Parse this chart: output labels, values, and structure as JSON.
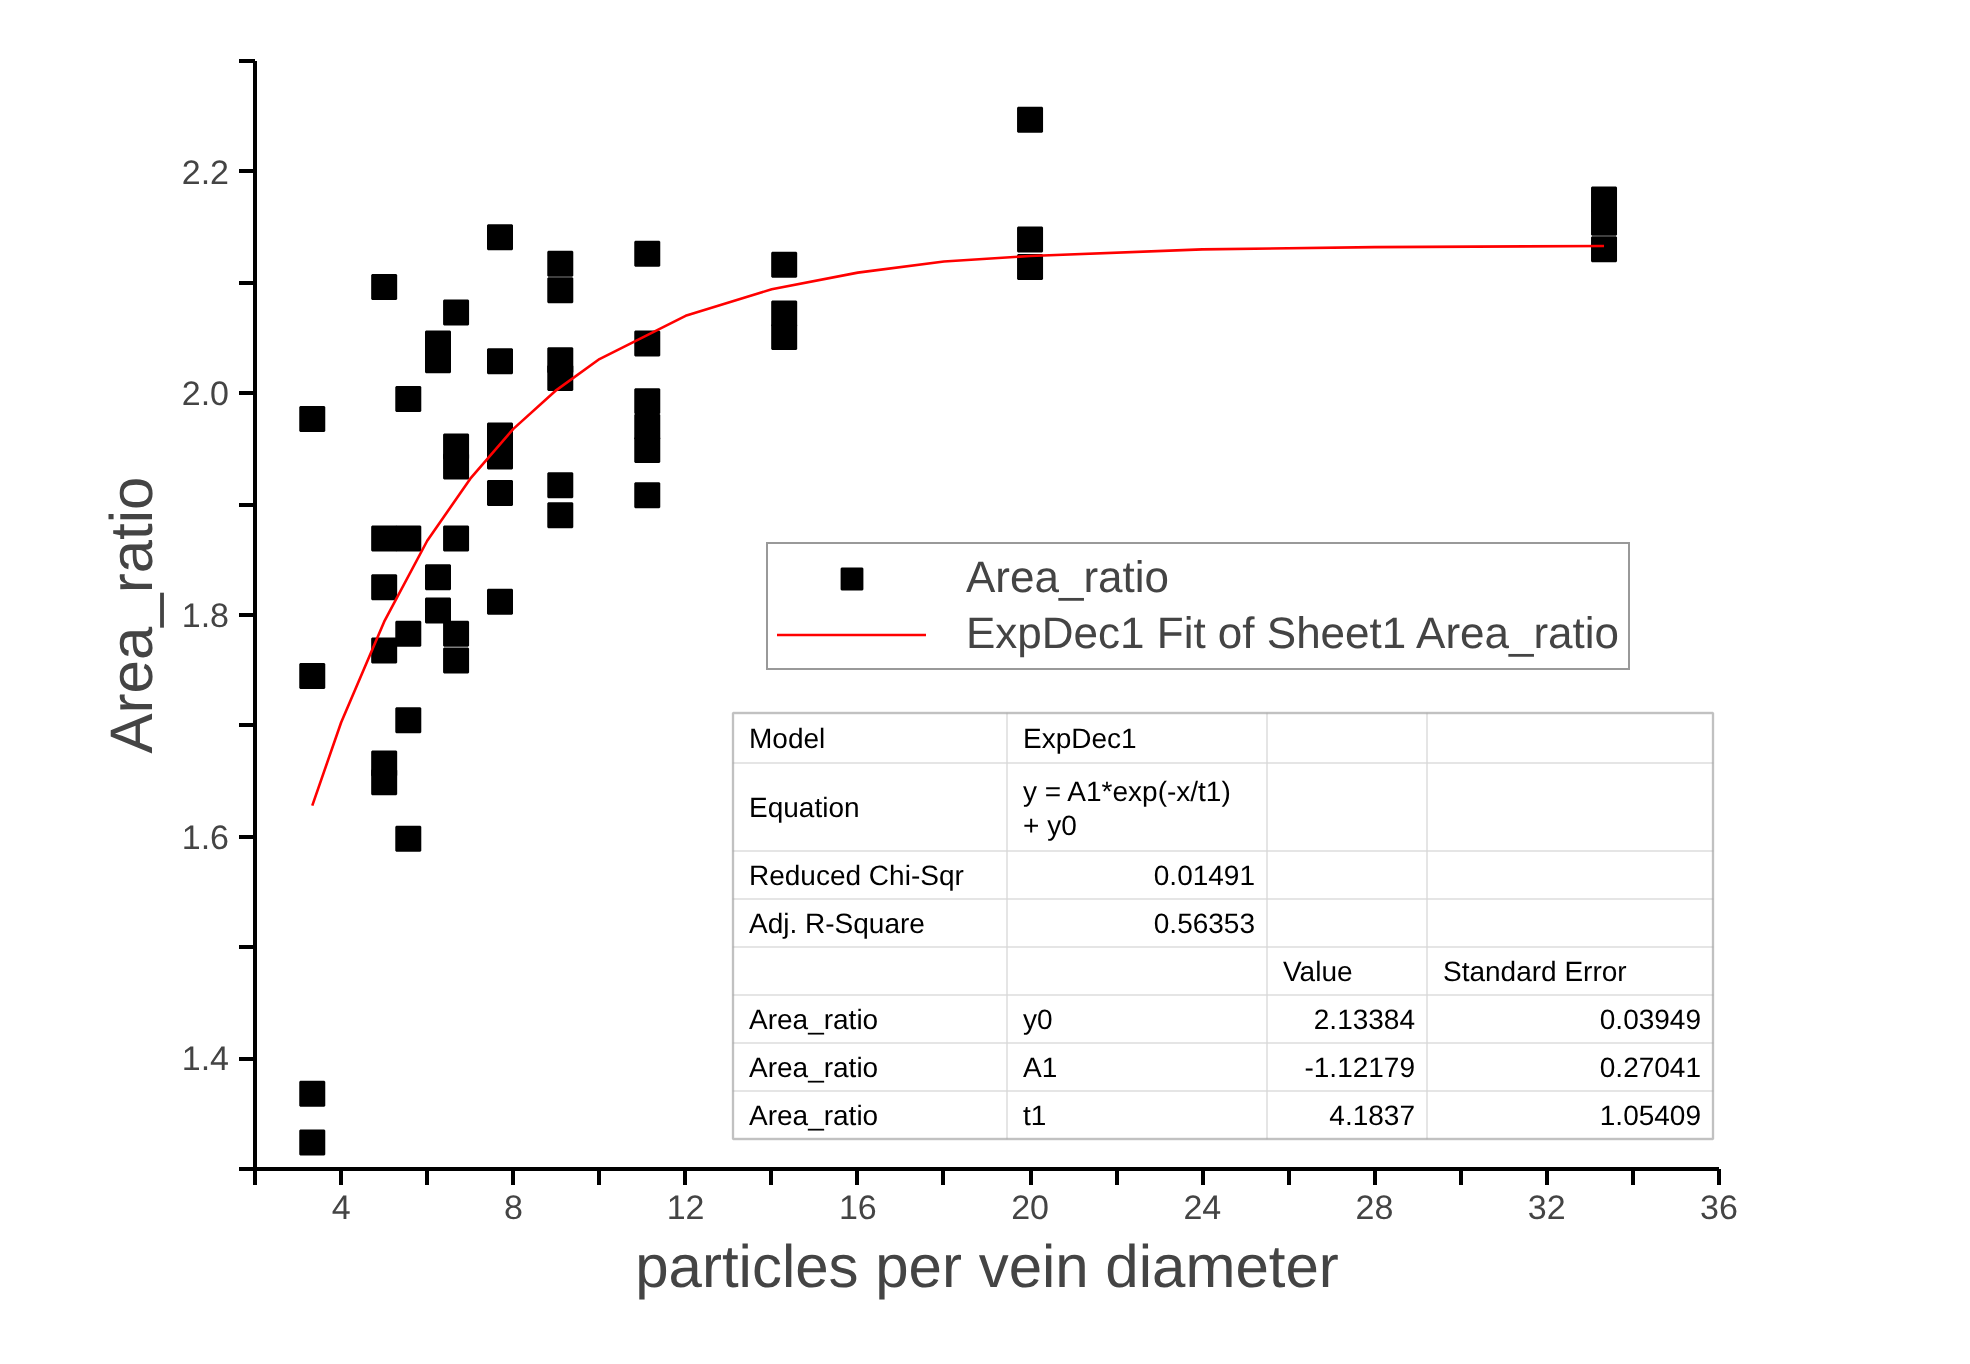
{
  "chart_data": {
    "type": "scatter",
    "xlabel": "particles per vein diameter",
    "ylabel": "Area_ratio",
    "xlim": [
      2,
      36
    ],
    "ylim": [
      1.3,
      2.3
    ],
    "xticks": [
      {
        "value": 2,
        "label": null
      },
      4,
      {
        "value": 6,
        "label": null
      },
      8,
      {
        "value": 10,
        "label": null
      },
      12,
      {
        "value": 14,
        "label": null
      },
      16,
      {
        "value": 18,
        "label": null
      },
      20,
      {
        "value": 22,
        "label": null
      },
      24,
      {
        "value": 26,
        "label": null
      },
      28,
      {
        "value": 30,
        "label": null
      },
      32,
      {
        "value": 34,
        "label": null
      },
      36
    ],
    "yticks": [
      {
        "value": 1.3,
        "label": null
      },
      1.4,
      {
        "value": 1.5,
        "label": null
      },
      1.6,
      {
        "value": 1.7,
        "label": null
      },
      1.8,
      {
        "value": 1.9,
        "label": null
      },
      {
        "value": 2.0,
        "label": "2.0"
      },
      {
        "value": 2.1,
        "label": null
      },
      2.2,
      {
        "value": 2.3,
        "label": null
      }
    ],
    "marker": "square",
    "legend": "right",
    "grid": false,
    "series": [
      {
        "name": "Area_ratio",
        "color": "#000000",
        "x": [
          3.33,
          3.33,
          3.33,
          3.33,
          5,
          5,
          5,
          5,
          5,
          5,
          5.56,
          5.56,
          5.56,
          5.56,
          5.56,
          6.25,
          6.25,
          6.25,
          6.25,
          6.67,
          6.67,
          6.67,
          6.67,
          6.67,
          6.67,
          7.69,
          7.69,
          7.69,
          7.69,
          7.69,
          7.69,
          9.09,
          9.09,
          9.09,
          9.09,
          9.09,
          9.09,
          11.11,
          11.11,
          11.11,
          11.11,
          11.11,
          11.11,
          14.29,
          14.29,
          14.29,
          20,
          20,
          20,
          33.33,
          33.33,
          33.33
        ],
        "values": [
          1.977,
          1.745,
          1.368,
          1.324,
          2.096,
          1.869,
          1.825,
          1.768,
          1.666,
          1.649,
          1.995,
          1.869,
          1.783,
          1.705,
          1.598,
          2.045,
          2.03,
          1.834,
          1.804,
          2.073,
          1.952,
          1.934,
          1.869,
          1.783,
          1.759,
          2.141,
          2.029,
          1.962,
          1.943,
          1.91,
          1.812,
          2.117,
          2.093,
          2.03,
          2.014,
          1.917,
          1.89,
          2.126,
          2.045,
          1.993,
          1.97,
          1.949,
          1.908,
          2.116,
          2.072,
          2.051,
          2.247,
          2.139,
          2.114,
          2.175,
          2.154,
          2.13
        ]
      },
      {
        "name": "ExpDec1 Fit of Sheet1 Area_ratio",
        "type": "line",
        "marker": "none",
        "color": "#ff0000",
        "x": [
          3.33,
          4,
          5,
          6,
          7,
          8,
          9,
          10,
          12,
          14,
          16,
          18,
          20,
          24,
          28,
          33.33
        ],
        "values": [
          1.628,
          1.703,
          1.794,
          1.867,
          1.923,
          1.968,
          2.003,
          2.031,
          2.07,
          2.094,
          2.109,
          2.119,
          2.124,
          2.13,
          2.132,
          2.133
        ]
      }
    ],
    "annotations": [
      "Model",
      "ExpDec1",
      "Equation",
      "y = A1*exp(-x/t1) + y0",
      "Reduced Chi-Sqr",
      "0.01491",
      "Adj. R-Square",
      "0.56353",
      "Value",
      "Standard Error",
      "Area_ratio",
      "y0",
      "2.13384",
      "0.03949",
      "Area_ratio",
      "A1",
      "-1.12179",
      "0.27041",
      "Area_ratio",
      "t1",
      "4.1837",
      "1.05409"
    ]
  }
}
